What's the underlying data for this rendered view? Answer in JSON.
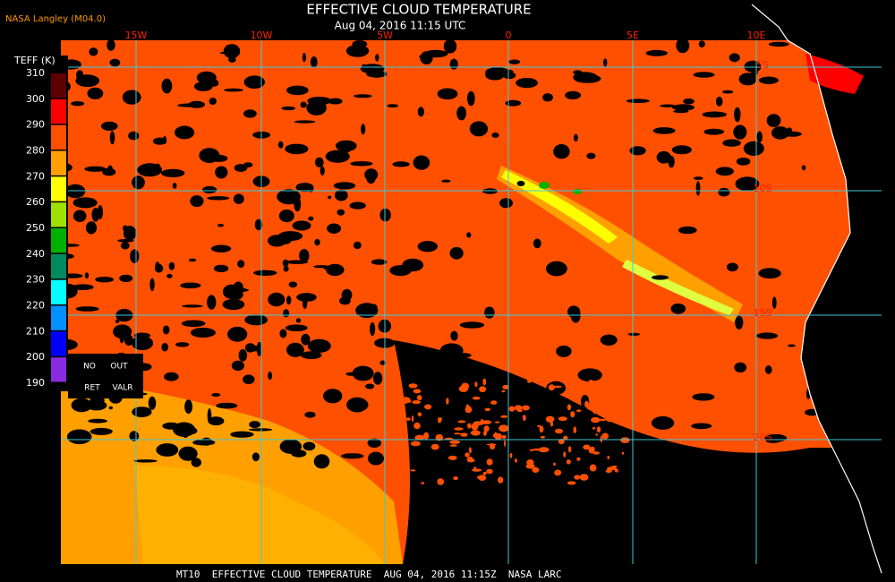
{
  "header": {
    "title": "EFFECTIVE CLOUD TEMPERATURE",
    "subtitle": "Aug 04, 2016 11:15 UTC",
    "credit": "NASA Langley (M04.0)"
  },
  "legend": {
    "title": "TEFF (K)",
    "ticks": [
      310,
      300,
      290,
      280,
      270,
      260,
      250,
      240,
      230,
      220,
      210,
      200,
      190
    ],
    "colors": [
      "#5c0000",
      "#ff0000",
      "#ff5000",
      "#ffa000",
      "#ffff00",
      "#a0e000",
      "#00b000",
      "#008a60",
      "#00ffff",
      "#0090ff",
      "#0000ff",
      "#8a2be2"
    ],
    "notes": [
      "NO",
      "OUT",
      "RET",
      "VALR"
    ]
  },
  "grid": {
    "longitudes": [
      "15W",
      "10W",
      "5W",
      "0",
      "5E",
      "10E"
    ],
    "latitudes": [
      "5S",
      "10S",
      "15S",
      "20S"
    ]
  },
  "footer": "MT10  EFFECTIVE CLOUD TEMPERATURE  AUG 04, 2016 11:15Z  NASA LARC"
}
